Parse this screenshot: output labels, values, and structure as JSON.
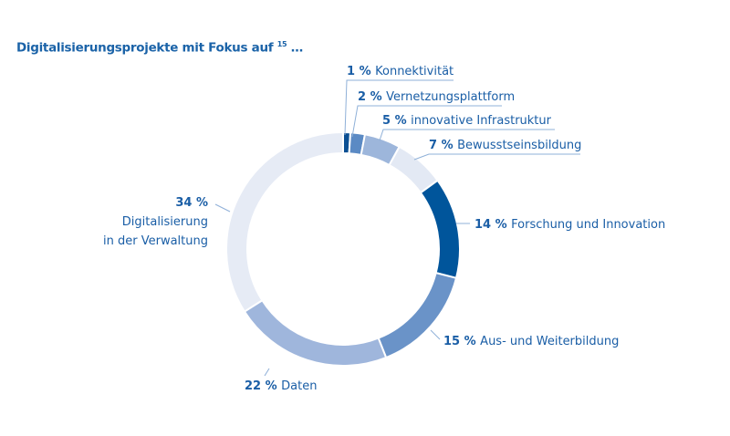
{
  "chart_data": {
    "type": "pie",
    "variant": "donut",
    "title": "Digitalisierungsprojekte mit Fokus auf",
    "title_footnote": "15",
    "title_suffix": "…",
    "slices": [
      {
        "label": "Konnektivität",
        "value": 1,
        "value_label": "1 %",
        "color": "#0b4f93"
      },
      {
        "label": "Vernetzungsplattform",
        "value": 2,
        "value_label": "2 %",
        "color": "#5b8ac4"
      },
      {
        "label": "innovative Infrastruktur",
        "value": 5,
        "value_label": "5 %",
        "color": "#9db6db"
      },
      {
        "label": "Bewusstseinsbildung",
        "value": 7,
        "value_label": "7 %",
        "color": "#e3e9f4"
      },
      {
        "label": "Forschung und Innovation",
        "value": 14,
        "value_label": "14 %",
        "color": "#00559b"
      },
      {
        "label": "Aus- und Weiterbildung",
        "value": 15,
        "value_label": "15 %",
        "color": "#6a93c8"
      },
      {
        "label": "Daten",
        "value": 22,
        "value_label": "22 %",
        "color": "#9fb6dc"
      },
      {
        "label": "Digitalisierung in der Verwaltung",
        "label_lines": [
          "Digitalisierung",
          "in der Verwaltung"
        ],
        "value": 34,
        "value_label": "34 %",
        "color": "#e6ebf5"
      }
    ]
  }
}
